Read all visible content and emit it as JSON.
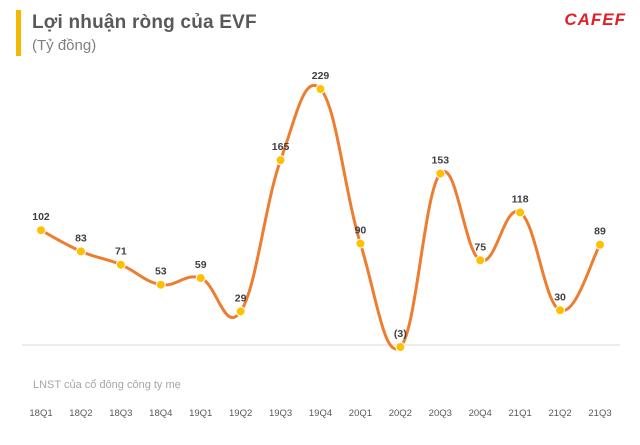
{
  "header": {
    "title": "Lợi nhuận  ròng của EVF",
    "subtitle": "(Tỷ đồng)",
    "logo": "CAFEF"
  },
  "footnote": "LNST của cổ đông công ty mẹ",
  "colors": {
    "line": "#ed7d31",
    "marker": "#ffc000",
    "accent_bar": "#f5b800",
    "logo": "#e31e24"
  },
  "chart_data": {
    "type": "line",
    "categories": [
      "18Q1",
      "18Q2",
      "18Q3",
      "18Q4",
      "19Q1",
      "19Q2",
      "19Q3",
      "19Q4",
      "20Q1",
      "20Q2",
      "20Q3",
      "20Q4",
      "21Q1",
      "21Q2",
      "21Q3"
    ],
    "values": [
      102,
      83,
      71,
      53,
      59,
      29,
      165,
      229,
      90,
      -3,
      153,
      75,
      118,
      30,
      89
    ],
    "data_labels": [
      "102",
      "83",
      "71",
      "53",
      "59",
      "29",
      "165",
      "229",
      "90",
      "(3)",
      "153",
      "75",
      "118",
      "30",
      "89"
    ],
    "title": "Lợi nhuận  ròng của EVF",
    "ylabel": "(Tỷ đồng)",
    "ylim": [
      -3,
      229
    ],
    "smooth": true,
    "grid": false,
    "legend": "none"
  }
}
